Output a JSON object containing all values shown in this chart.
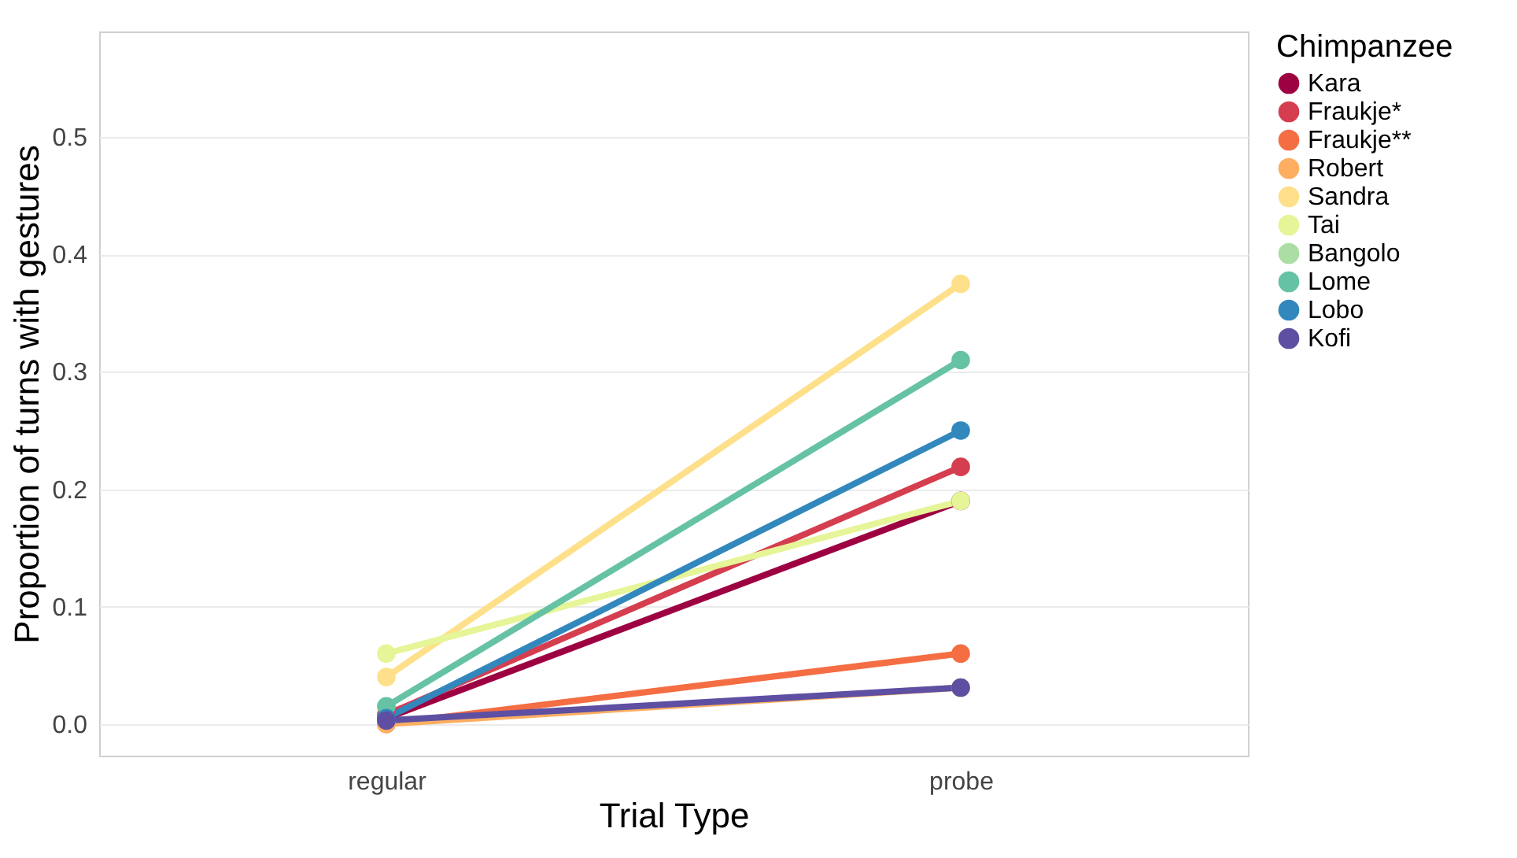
{
  "chart_data": {
    "type": "line",
    "xlabel": "Trial Type",
    "ylabel": "Proportion of turns with gestures",
    "legend_title": "Chimpanzee",
    "categories": [
      "regular",
      "probe"
    ],
    "series": [
      {
        "name": "Kara",
        "color": "#9e0142",
        "values": [
          0.005,
          0.19
        ]
      },
      {
        "name": "Fraukje*",
        "color": "#d53e4f",
        "values": [
          0.008,
          0.219
        ]
      },
      {
        "name": "Fraukje**",
        "color": "#f46d43",
        "values": [
          0,
          0.06
        ]
      },
      {
        "name": "Robert",
        "color": "#fdae61",
        "values": [
          0,
          0.031
        ]
      },
      {
        "name": "Sandra",
        "color": "#fee08b",
        "values": [
          0.04,
          0.375
        ]
      },
      {
        "name": "Tai",
        "color": "#e6f598",
        "values": [
          0.06,
          0.19
        ]
      },
      {
        "name": "Bangolo",
        "color": "#abdda4",
        "values": [
          null,
          null
        ]
      },
      {
        "name": "Lome",
        "color": "#66c2a5",
        "values": [
          0.015,
          0.31
        ]
      },
      {
        "name": "Lobo",
        "color": "#3288bd",
        "values": [
          0.005,
          0.25
        ]
      },
      {
        "name": "Kofi",
        "color": "#5e4fa2",
        "values": [
          0.003,
          0.031
        ]
      }
    ],
    "ylim": [
      -0.027,
      0.59
    ],
    "yticks": [
      {
        "value": 0,
        "label": "0.0"
      },
      {
        "value": 0.1,
        "label": "0.1"
      },
      {
        "value": 0.2,
        "label": "0.2"
      },
      {
        "value": 0.3,
        "label": "0.3"
      },
      {
        "value": 0.4,
        "label": "0.4"
      },
      {
        "value": 0.5,
        "label": "0.5"
      }
    ],
    "grid": "y",
    "legend": "right",
    "marker": "circle",
    "line_style": "solid"
  }
}
